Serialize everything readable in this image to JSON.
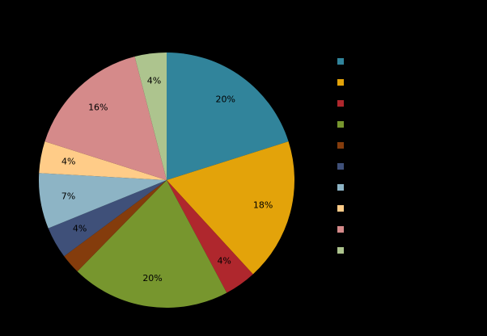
{
  "chart_data": {
    "type": "pie",
    "title": "",
    "start_angle_deg": 0,
    "direction": "clockwise",
    "center": [
      206,
      223
    ],
    "radius": 158,
    "slices": [
      {
        "name": "",
        "value": 20,
        "label": "20%",
        "color": "#31849B"
      },
      {
        "name": "",
        "value": 18,
        "label": "18%",
        "color": "#E3A30A"
      },
      {
        "name": "",
        "value": 4,
        "label": "4%",
        "color": "#AF272D"
      },
      {
        "name": "",
        "value": 20,
        "label": "20%",
        "color": "#77962E"
      },
      {
        "name": "",
        "value": 2.5,
        "label": "",
        "color": "#843C0C"
      },
      {
        "name": "",
        "value": 4,
        "label": "4%",
        "color": "#3F5079"
      },
      {
        "name": "",
        "value": 7,
        "label": "7%",
        "color": "#8DB4C5"
      },
      {
        "name": "",
        "value": 4,
        "label": "4%",
        "color": "#FFCC88"
      },
      {
        "name": "",
        "value": 16,
        "label": "16%",
        "color": "#D58A8A"
      },
      {
        "name": "",
        "value": 4,
        "label": "4%",
        "color": "#ADC48E"
      }
    ],
    "legend": {
      "position": "right",
      "entries": [
        "",
        "",
        "",
        "",
        "",
        "",
        "",
        "",
        "",
        ""
      ]
    }
  }
}
